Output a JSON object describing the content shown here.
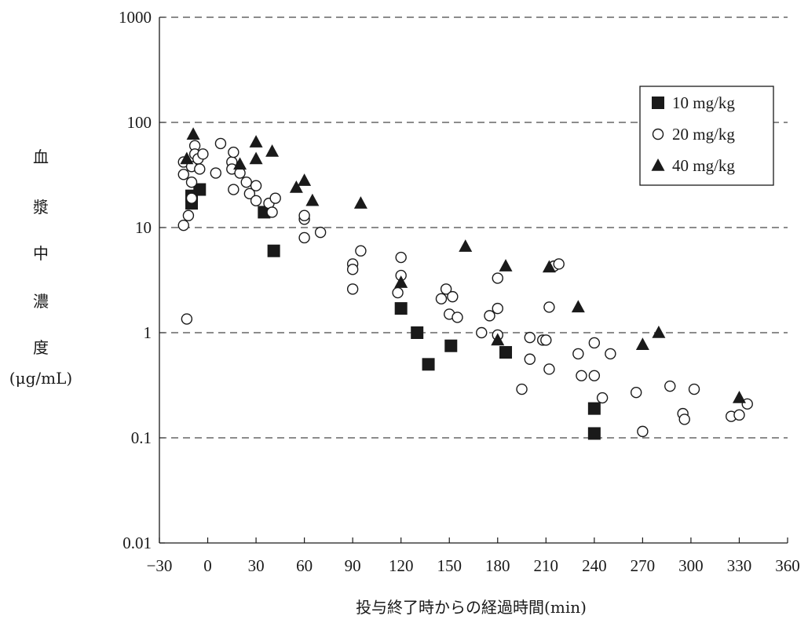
{
  "chart_data": {
    "type": "scatter",
    "xlabel": "投与終了時からの経過時間(min)",
    "ylabel": [
      "血",
      "漿",
      "中",
      "濃",
      "度",
      "(μg/mL)"
    ],
    "x_ticks": [
      "−30",
      "0",
      "30",
      "60",
      "90",
      "120",
      "150",
      "180",
      "210",
      "240",
      "270",
      "300",
      "330",
      "360"
    ],
    "y_ticks": [
      "1000",
      "100",
      "10",
      "1",
      "0.1",
      "0.01"
    ],
    "xlim": [
      -30,
      360
    ],
    "ylim": [
      0.01,
      1000
    ],
    "y_scale": "log",
    "grid": "horizontal dashed",
    "legend_position": "top-right",
    "series": [
      {
        "name": "10 mg/kg",
        "marker": "filled-square",
        "color": "#1a1a1a",
        "points": [
          [
            -10,
            17
          ],
          [
            -10,
            20
          ],
          [
            -5,
            23
          ],
          [
            35,
            14
          ],
          [
            41,
            6
          ],
          [
            120,
            1.7
          ],
          [
            130,
            1.0
          ],
          [
            137,
            0.5
          ],
          [
            151,
            0.75
          ],
          [
            185,
            0.65
          ],
          [
            240,
            0.19
          ],
          [
            240,
            0.11
          ]
        ]
      },
      {
        "name": "20 mg/kg",
        "marker": "open-circle",
        "color": "#1a1a1a",
        "points": [
          [
            -15,
            42
          ],
          [
            -15,
            32
          ],
          [
            -15,
            10.5
          ],
          [
            -13,
            1.35
          ],
          [
            -12,
            13
          ],
          [
            -10,
            19
          ],
          [
            -10,
            27
          ],
          [
            -10,
            38
          ],
          [
            -8,
            60
          ],
          [
            -8,
            50
          ],
          [
            -6,
            45
          ],
          [
            -5,
            36
          ],
          [
            -3,
            50
          ],
          [
            5,
            33
          ],
          [
            8,
            63
          ],
          [
            15,
            42
          ],
          [
            15,
            36
          ],
          [
            16,
            52
          ],
          [
            16,
            23
          ],
          [
            20,
            33
          ],
          [
            24,
            27
          ],
          [
            26,
            21
          ],
          [
            30,
            25
          ],
          [
            30,
            18
          ],
          [
            38,
            17
          ],
          [
            40,
            14
          ],
          [
            42,
            19
          ],
          [
            60,
            12
          ],
          [
            60,
            13
          ],
          [
            60,
            8
          ],
          [
            70,
            9
          ],
          [
            90,
            4.5
          ],
          [
            90,
            4
          ],
          [
            90,
            2.6
          ],
          [
            95,
            6
          ],
          [
            118,
            2.4
          ],
          [
            120,
            5.2
          ],
          [
            120,
            3.5
          ],
          [
            145,
            2.1
          ],
          [
            148,
            2.6
          ],
          [
            150,
            1.5
          ],
          [
            152,
            2.2
          ],
          [
            155,
            1.4
          ],
          [
            170,
            1.0
          ],
          [
            175,
            1.45
          ],
          [
            180,
            0.95
          ],
          [
            180,
            1.7
          ],
          [
            180,
            3.3
          ],
          [
            195,
            0.29
          ],
          [
            200,
            0.56
          ],
          [
            200,
            0.9
          ],
          [
            208,
            0.85
          ],
          [
            210,
            0.85
          ],
          [
            212,
            0.45
          ],
          [
            212,
            1.75
          ],
          [
            215,
            4.3
          ],
          [
            218,
            4.5
          ],
          [
            230,
            0.63
          ],
          [
            232,
            0.39
          ],
          [
            240,
            0.8
          ],
          [
            240,
            0.39
          ],
          [
            245,
            0.24
          ],
          [
            250,
            0.63
          ],
          [
            266,
            0.27
          ],
          [
            270,
            0.115
          ],
          [
            287,
            0.31
          ],
          [
            295,
            0.17
          ],
          [
            296,
            0.15
          ],
          [
            302,
            0.29
          ],
          [
            325,
            0.16
          ],
          [
            330,
            0.165
          ],
          [
            335,
            0.21
          ]
        ]
      },
      {
        "name": "40 mg/kg",
        "marker": "filled-triangle",
        "color": "#1a1a1a",
        "points": [
          [
            -13,
            45
          ],
          [
            -9,
            77
          ],
          [
            20,
            40
          ],
          [
            30,
            65
          ],
          [
            30,
            45
          ],
          [
            40,
            53
          ],
          [
            55,
            24
          ],
          [
            60,
            28
          ],
          [
            65,
            18
          ],
          [
            95,
            17
          ],
          [
            120,
            3
          ],
          [
            160,
            6.6
          ],
          [
            180,
            0.85
          ],
          [
            185,
            4.3
          ],
          [
            212,
            4.2
          ],
          [
            230,
            1.75
          ],
          [
            270,
            0.77
          ],
          [
            280,
            1.0
          ],
          [
            330,
            0.24
          ]
        ]
      }
    ]
  }
}
